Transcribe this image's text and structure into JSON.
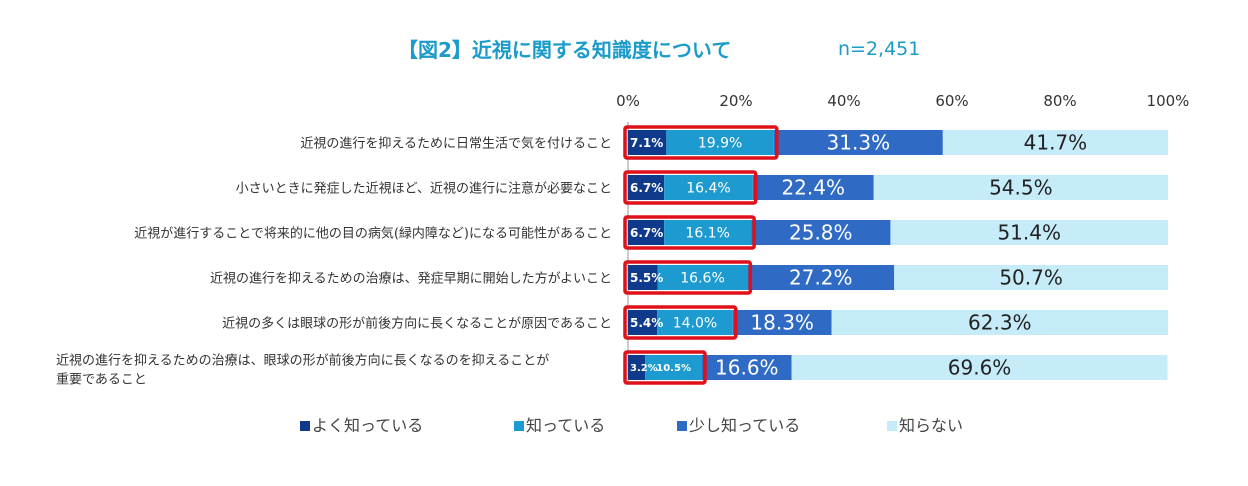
{
  "chart_data": {
    "type": "bar",
    "orientation": "horizontal",
    "stacked": true,
    "percent": true,
    "title": "【図2】近視に関する知識度について",
    "subtitle": "n=2,451",
    "xlim": [
      0,
      100
    ],
    "xticks": [
      0,
      20,
      40,
      60,
      80,
      100
    ],
    "tick_suffix": "%",
    "grid": false,
    "legend_position": "bottom",
    "categories": [
      [
        "近視の進行を抑えるために日常生活で気を付けること"
      ],
      [
        "小さいときに発症した近視ほど、近視の進行に注意が必要なこと"
      ],
      [
        "近視が進行することで将来的に他の目の病気(緑内障など)になる可能性があること"
      ],
      [
        "近視の進行を抑えるための治療は、発症早期に開始した方がよいこと"
      ],
      [
        "近視の多くは眼球の形が前後方向に長くなることが原因であること"
      ],
      [
        "近視の進行を抑えるための治療は、眼球の形が前後方向に長くなるのを抑えることが",
        "重要であること"
      ]
    ],
    "series": [
      {
        "name": "よく知っている",
        "color": "#0f3a8c",
        "values": [
          7.1,
          6.7,
          6.7,
          5.5,
          5.4,
          3.2
        ],
        "labels": [
          "7.1%",
          "6.7%",
          "6.7%",
          "5.5%",
          "5.4%",
          "3.2%"
        ]
      },
      {
        "name": "知っている",
        "color": "#1d9bd1",
        "values": [
          19.9,
          16.4,
          16.1,
          16.6,
          14.0,
          10.5
        ],
        "labels": [
          "19.9%",
          "16.4%",
          "16.1%",
          "16.6%",
          "14.0%",
          "10.5%"
        ]
      },
      {
        "name": "少し知っている",
        "color": "#2f6bc4",
        "values": [
          31.3,
          22.4,
          25.8,
          27.2,
          18.3,
          16.6
        ],
        "labels": [
          "31.3%",
          "22.4%",
          "25.8%",
          "27.2%",
          "18.3%",
          "16.6%"
        ]
      },
      {
        "name": "知らない",
        "color": "#c6ecfa",
        "values": [
          41.7,
          54.5,
          51.4,
          50.7,
          62.3,
          69.6
        ],
        "labels": [
          "41.7%",
          "54.5%",
          "51.4%",
          "50.7%",
          "62.3%",
          "69.6%"
        ]
      }
    ],
    "highlight_color": "#e0101a"
  }
}
